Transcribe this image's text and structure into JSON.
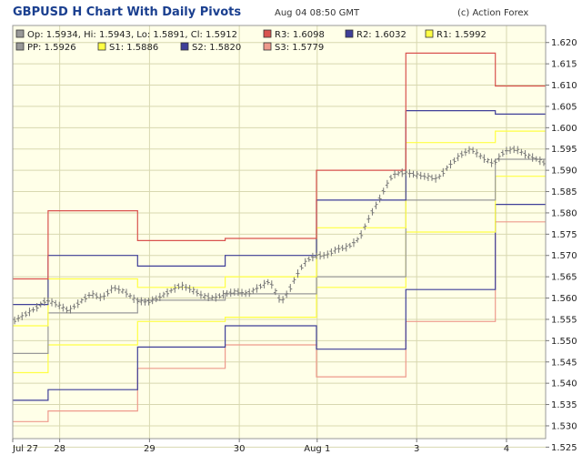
{
  "header": {
    "title": "GBPUSD H Chart With Daily Pivots",
    "timestamp": "Aug 04 08:50 GMT",
    "copyright": "(c) Action Forex"
  },
  "colors": {
    "plot_bg": "#ffffe8",
    "grid": "#d8d8b0",
    "r3": "#d9534f",
    "r2": "#3f3f99",
    "r1": "#ffff44",
    "pp": "#999999",
    "s1": "#ffff44",
    "s2": "#3f3f99",
    "s3": "#ee9a8c",
    "price": "#777777"
  },
  "chart_data": {
    "type": "line",
    "title": "GBPUSD H Chart With Daily Pivots",
    "ylim": [
      1.527,
      1.624
    ],
    "grid": true,
    "y_ticks": [
      "1.620",
      "1.615",
      "1.610",
      "1.605",
      "1.600",
      "1.595",
      "1.590",
      "1.585",
      "1.580",
      "1.575",
      "1.570",
      "1.565",
      "1.560",
      "1.555",
      "1.550",
      "1.545",
      "1.540",
      "1.535",
      "1.530",
      "1.525"
    ],
    "x_tick_labels": [
      "Jul 27",
      "28",
      "29",
      "30",
      "Aug 1",
      "3",
      "4"
    ],
    "x_range": [
      0,
      143
    ],
    "x_ticks": [
      0,
      12.6,
      36.7,
      60.8,
      81.7,
      108.4,
      132.5
    ],
    "legend": {
      "ohlc": "Op: 1.5934,  Hi: 1.5943,  Lo: 1.5891,  Cl: 1.5912",
      "items": [
        {
          "key": "r3",
          "label": "R3: 1.6098"
        },
        {
          "key": "r2",
          "label": "R2: 1.6032"
        },
        {
          "key": "r1",
          "label": "R1: 1.5992"
        },
        {
          "key": "pp",
          "label": "PP: 1.5926"
        },
        {
          "key": "s1",
          "label": "S1: 1.5886"
        },
        {
          "key": "s2",
          "label": "S2: 1.5820"
        },
        {
          "key": "s3",
          "label": "S3: 1.5779"
        }
      ]
    },
    "pivot_segments": [
      {
        "x": [
          0,
          9.5
        ],
        "r3": 1.5645,
        "r2": 1.5585,
        "r1": 1.5535,
        "pp": 1.547,
        "s1": 1.5425,
        "s2": 1.536,
        "s3": 1.531
      },
      {
        "x": [
          9.5,
          33.5
        ],
        "r3": 1.5805,
        "r2": 1.57,
        "r1": 1.5645,
        "pp": 1.5565,
        "s1": 1.549,
        "s2": 1.5385,
        "s3": 1.5335
      },
      {
        "x": [
          33.5,
          57
        ],
        "r3": 1.5735,
        "r2": 1.5675,
        "r1": 1.5625,
        "pp": 1.5595,
        "s1": 1.5545,
        "s2": 1.5485,
        "s3": 1.5435
      },
      {
        "x": [
          57,
          81.5
        ],
        "r3": 1.574,
        "r2": 1.57,
        "r1": 1.565,
        "pp": 1.561,
        "s1": 1.5555,
        "s2": 1.5535,
        "s3": 1.549
      },
      {
        "x": [
          81.5,
          105.5
        ],
        "r3": 1.59,
        "r2": 1.583,
        "r1": 1.5765,
        "pp": 1.565,
        "s1": 1.5625,
        "s2": 1.548,
        "s3": 1.5415
      },
      {
        "x": [
          105.5,
          129.5
        ],
        "r3": 1.6175,
        "r2": 1.604,
        "r1": 1.5965,
        "pp": 1.583,
        "s1": 1.5755,
        "s2": 1.562,
        "s3": 1.5545
      },
      {
        "x": [
          129.5,
          143
        ],
        "r3": 1.6098,
        "r2": 1.6032,
        "r1": 1.5992,
        "pp": 1.5926,
        "s1": 1.5886,
        "s2": 1.582,
        "s3": 1.5779
      }
    ],
    "price_path": [
      [
        0,
        1.5545
      ],
      [
        3,
        1.556
      ],
      [
        6,
        1.5575
      ],
      [
        9,
        1.5595
      ],
      [
        12,
        1.5585
      ],
      [
        15,
        1.557
      ],
      [
        18,
        1.559
      ],
      [
        21,
        1.561
      ],
      [
        24,
        1.56
      ],
      [
        27,
        1.5625
      ],
      [
        30,
        1.5615
      ],
      [
        33,
        1.5595
      ],
      [
        36,
        1.559
      ],
      [
        39,
        1.56
      ],
      [
        42,
        1.5615
      ],
      [
        45,
        1.563
      ],
      [
        48,
        1.562
      ],
      [
        51,
        1.5605
      ],
      [
        54,
        1.56
      ],
      [
        57,
        1.561
      ],
      [
        60,
        1.5615
      ],
      [
        63,
        1.561
      ],
      [
        66,
        1.5625
      ],
      [
        69,
        1.564
      ],
      [
        72,
        1.559
      ],
      [
        74,
        1.5615
      ],
      [
        76,
        1.565
      ],
      [
        78,
        1.568
      ],
      [
        80,
        1.5695
      ],
      [
        82,
        1.57
      ],
      [
        84,
        1.57
      ],
      [
        87,
        1.5715
      ],
      [
        90,
        1.572
      ],
      [
        93,
        1.574
      ],
      [
        96,
        1.5795
      ],
      [
        98,
        1.5825
      ],
      [
        100,
        1.586
      ],
      [
        102,
        1.589
      ],
      [
        105,
        1.5895
      ],
      [
        108,
        1.589
      ],
      [
        111,
        1.5885
      ],
      [
        114,
        1.588
      ],
      [
        117,
        1.591
      ],
      [
        120,
        1.5935
      ],
      [
        123,
        1.595
      ],
      [
        126,
        1.593
      ],
      [
        129,
        1.5915
      ],
      [
        132,
        1.5945
      ],
      [
        135,
        1.595
      ],
      [
        138,
        1.5935
      ],
      [
        141,
        1.5925
      ],
      [
        143,
        1.5915
      ]
    ]
  }
}
